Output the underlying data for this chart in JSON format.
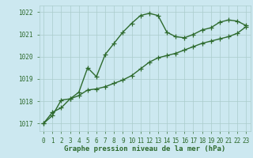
{
  "line1_x": [
    0,
    1,
    2,
    3,
    4,
    5,
    6,
    7,
    8,
    9,
    10,
    11,
    12,
    13,
    14,
    15,
    16,
    17,
    18,
    19,
    20,
    21,
    22,
    23
  ],
  "line1_y": [
    1017.0,
    1017.5,
    1017.7,
    1018.1,
    1018.4,
    1019.5,
    1019.1,
    1020.1,
    1020.6,
    1021.1,
    1021.5,
    1021.85,
    1021.95,
    1021.85,
    1021.1,
    1020.9,
    1020.85,
    1021.0,
    1021.2,
    1021.3,
    1021.55,
    1021.65,
    1021.6,
    1021.4
  ],
  "line2_x": [
    0,
    1,
    2,
    3,
    4,
    5,
    6,
    7,
    8,
    9,
    10,
    11,
    12,
    13,
    14,
    15,
    16,
    17,
    18,
    19,
    20,
    21,
    22,
    23
  ],
  "line2_y": [
    1017.0,
    1017.35,
    1018.05,
    1018.1,
    1018.25,
    1018.5,
    1018.55,
    1018.65,
    1018.8,
    1018.95,
    1019.15,
    1019.45,
    1019.75,
    1019.95,
    1020.05,
    1020.15,
    1020.3,
    1020.45,
    1020.6,
    1020.7,
    1020.8,
    1020.9,
    1021.05,
    1021.35
  ],
  "line_color": "#2d6a2d",
  "bg_color": "#cce8f0",
  "grid_color": "#aacccc",
  "xlabel": "Graphe pression niveau de la mer (hPa)",
  "yticks": [
    1017,
    1018,
    1019,
    1020,
    1021,
    1022
  ],
  "xticks": [
    0,
    1,
    2,
    3,
    4,
    5,
    6,
    7,
    8,
    9,
    10,
    11,
    12,
    13,
    14,
    15,
    16,
    17,
    18,
    19,
    20,
    21,
    22,
    23
  ],
  "ylim": [
    1016.65,
    1022.3
  ],
  "xlim": [
    -0.5,
    23.5
  ],
  "marker": "+",
  "markersize": 4,
  "linewidth": 1.0,
  "xlabel_fontsize": 6.5,
  "tick_fontsize": 5.5,
  "line_color_hex": "#2d6a2d",
  "tick_color": "#2d6a2d",
  "xlabel_color": "#2d6a2d"
}
